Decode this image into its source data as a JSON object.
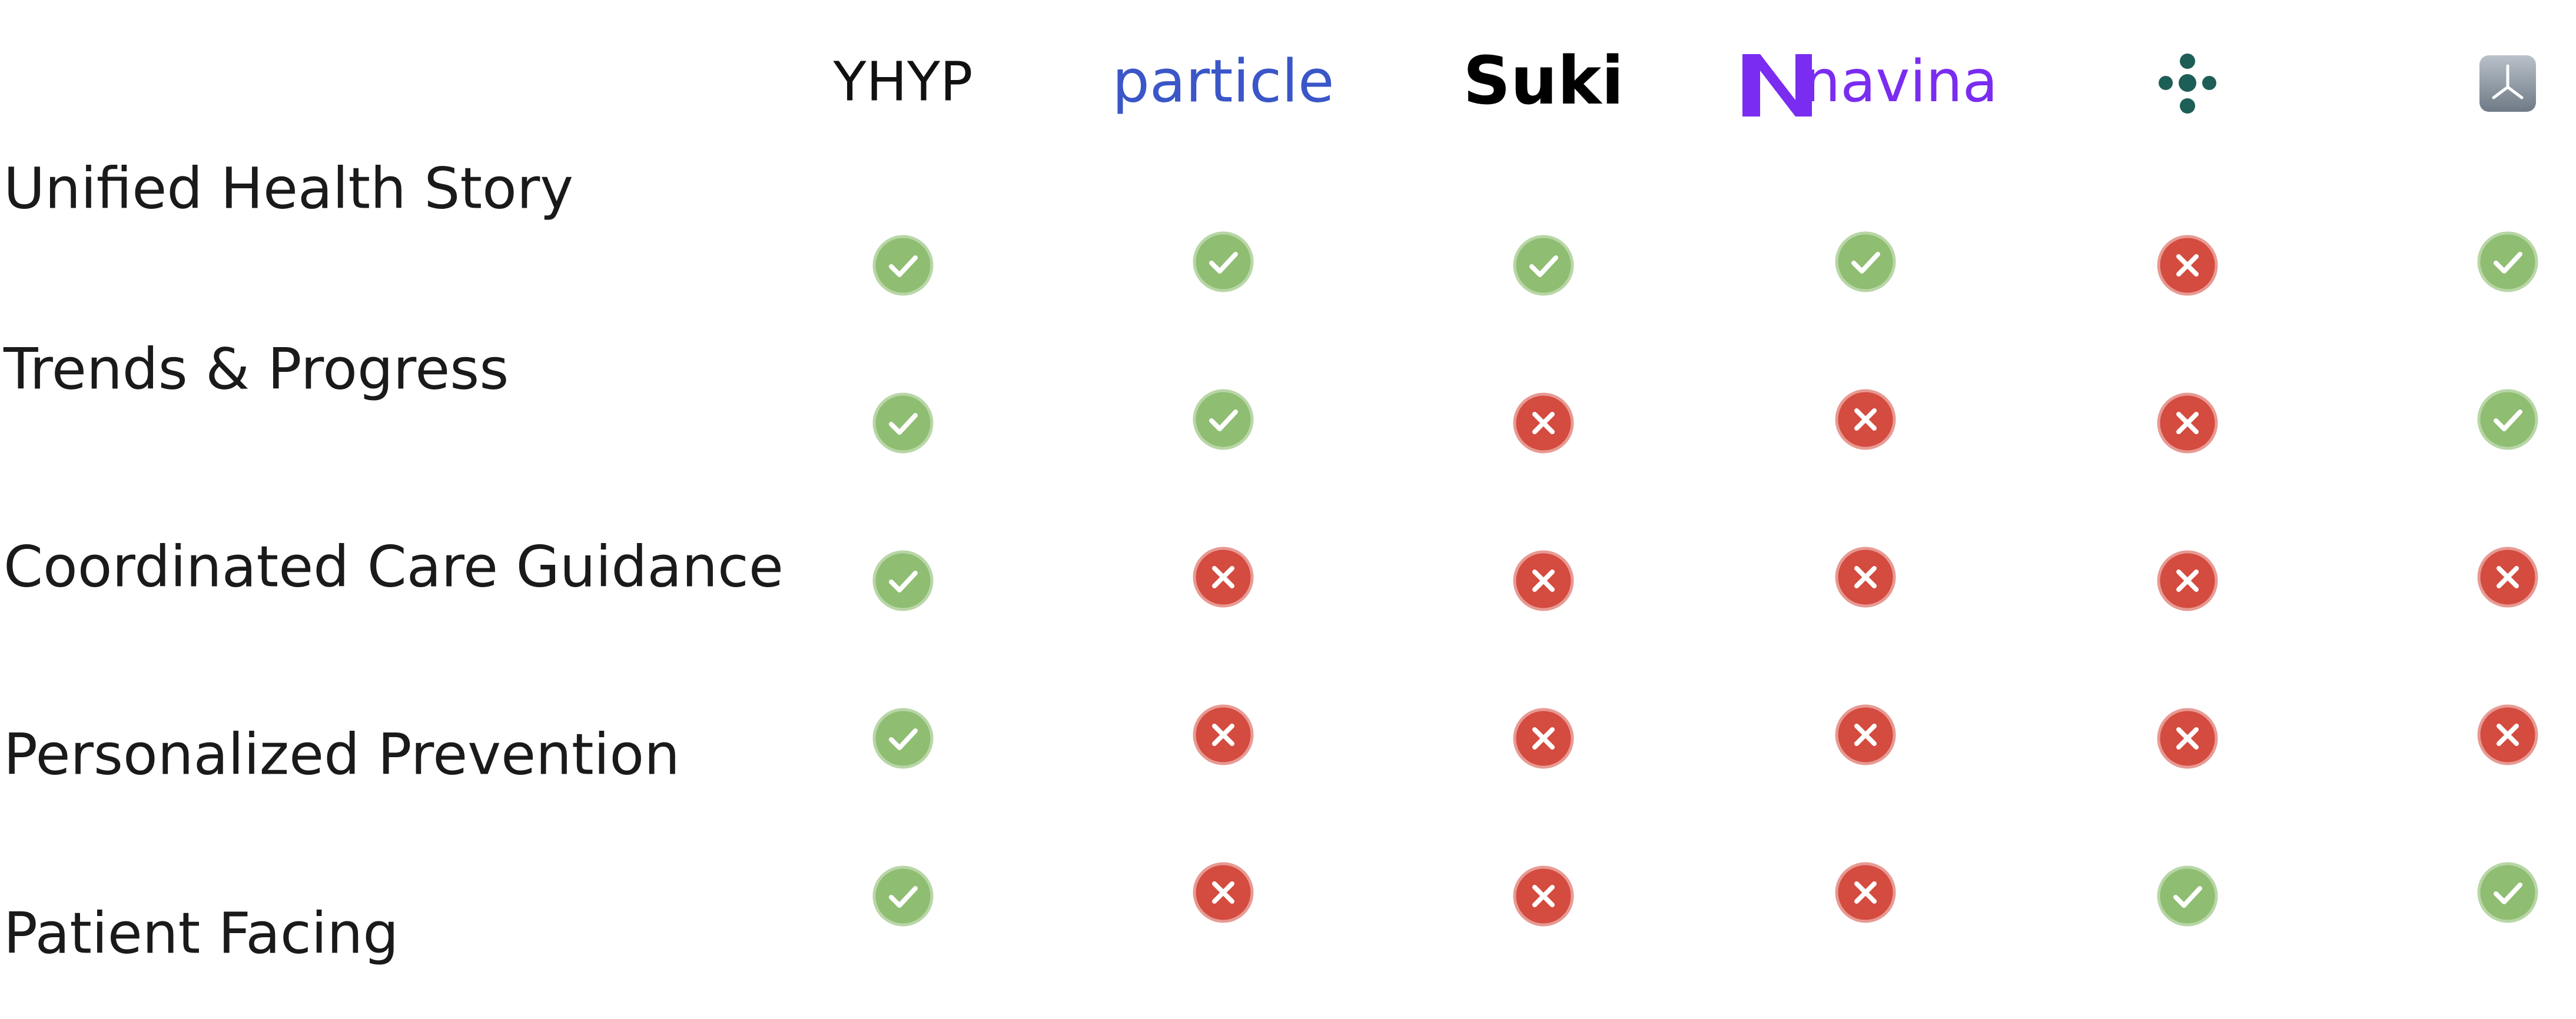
{
  "columns": [
    "YHYP",
    "particle",
    "Suki",
    "navina",
    null,
    null
  ],
  "rows": [
    {
      "label": "Unified Health Story",
      "values": [
        true,
        true,
        true,
        true,
        false,
        true
      ]
    },
    {
      "label": "Trends & Progress",
      "values": [
        true,
        true,
        false,
        false,
        false,
        true
      ]
    },
    {
      "label": "Coordinated Care Guidance",
      "values": [
        true,
        false,
        false,
        false,
        false,
        false
      ]
    },
    {
      "label": "Personalized Prevention",
      "values": [
        true,
        false,
        false,
        false,
        false,
        false
      ]
    },
    {
      "label": "Patient Facing",
      "values": [
        true,
        false,
        false,
        false,
        true,
        true
      ]
    }
  ]
}
